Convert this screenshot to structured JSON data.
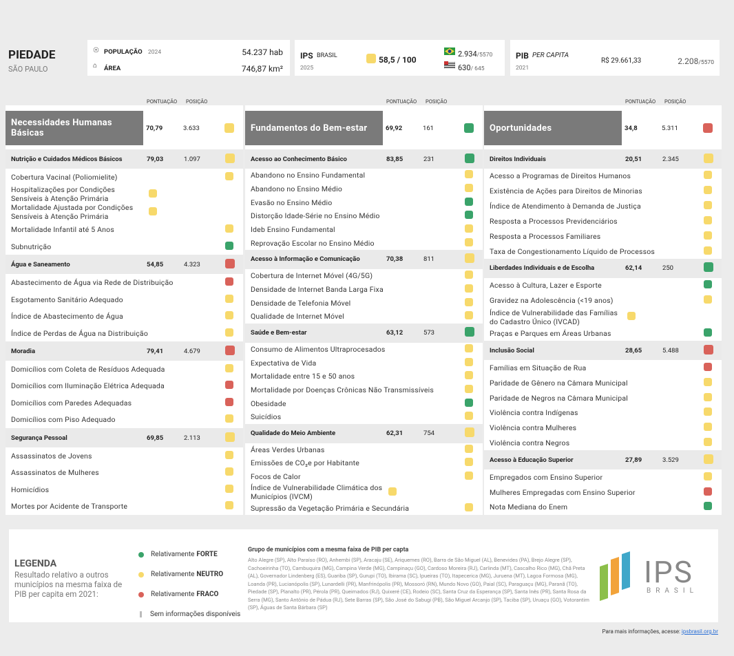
{
  "header": {
    "city": "PIEDADE",
    "state": "SÃO PAULO",
    "population": {
      "label": "POPULAÇÃO",
      "year": "2024",
      "value": "54.237 hab"
    },
    "area": {
      "label": "ÁREA",
      "value": "746,87 km²"
    },
    "ips": {
      "label": "IPS",
      "sub": "BRASIL",
      "year": "2025",
      "score": "58,5 / 100",
      "color": "#f7d96b",
      "rank_br": "2.934",
      "total_br": "/5570",
      "rank_uf": "630",
      "total_uf": "/ 645"
    },
    "pib": {
      "label": "PIB",
      "sub": "PER CAPITA",
      "year": "2021",
      "value": "R$ 29.661,33",
      "rank": "2.208",
      "total": "/5570"
    }
  },
  "labels": {
    "score": "PONTUAÇÃO",
    "position": "POSIÇÃO"
  },
  "columns": [
    {
      "name": "Necessidades Humanas Básicas",
      "score": "70,79",
      "position": "3.633",
      "color": "#f7d96b",
      "components": [
        {
          "name": "Nutrição e Cuidados Médicos Básicos",
          "score": "79,03",
          "position": "1.097",
          "color": "#f7d96b",
          "indicators": [
            {
              "name": "Cobertura Vacinal (Poliomielite)",
              "color": "#f7d96b"
            },
            {
              "name": "Hospitalizações por Condições Sensíveis à Atenção Primária",
              "color": "#f7d96b"
            },
            {
              "name": "Mortalidade Ajustada por Condições Sensíveis à Atenção Primária",
              "color": "#f7d96b"
            },
            {
              "name": "Mortalidade Infantil até 5 Anos",
              "color": "#f7d96b"
            },
            {
              "name": "Subnutrição",
              "color": "#3aa36a"
            }
          ]
        },
        {
          "name": "Água e Saneamento",
          "score": "54,85",
          "position": "4.323",
          "color": "#d9625a",
          "indicators": [
            {
              "name": "Abastecimento de Água via Rede de Distribuição",
              "color": "#d9625a"
            },
            {
              "name": "Esgotamento Sanitário Adequado",
              "color": "#f7d96b"
            },
            {
              "name": "Índice de Abastecimento de Água",
              "color": "#f7d96b"
            },
            {
              "name": "Índice de Perdas de Água na Distribuição",
              "color": "#f7d96b"
            }
          ]
        },
        {
          "name": "Moradia",
          "score": "79,41",
          "position": "4.679",
          "color": "#d9625a",
          "indicators": [
            {
              "name": "Domicílios com Coleta de Resíduos Adequada",
              "color": "#f7d96b"
            },
            {
              "name": "Domicílios com Iluminação Elétrica Adequada",
              "color": "#d9625a"
            },
            {
              "name": "Domicílios com Paredes Adequadas",
              "color": "#d9625a"
            },
            {
              "name": "Domicílios com Piso Adequado",
              "color": "#f7d96b"
            }
          ]
        },
        {
          "name": "Segurança Pessoal",
          "score": "69,85",
          "position": "2.113",
          "color": "#f7d96b",
          "indicators": [
            {
              "name": "Assassinatos de Jovens",
              "color": "#f7d96b"
            },
            {
              "name": "Assassinatos de Mulheres",
              "color": "#f7d96b"
            },
            {
              "name": "Homicídios",
              "color": "#f7d96b"
            },
            {
              "name": "Mortes por Acidente de Transporte",
              "color": "#f7d96b"
            }
          ]
        }
      ]
    },
    {
      "name": "Fundamentos do Bem-estar",
      "score": "69,92",
      "position": "161",
      "color": "#3aa36a",
      "components": [
        {
          "name": "Acesso ao Conhecimento Básico",
          "score": "83,85",
          "position": "231",
          "color": "#3aa36a",
          "indicators": [
            {
              "name": "Abandono no Ensino Fundamental",
              "color": "#f7d96b"
            },
            {
              "name": "Abandono no Ensino Médio",
              "color": "#f7d96b"
            },
            {
              "name": "Evasão no Ensino Médio",
              "color": "#3aa36a"
            },
            {
              "name": "Distorção Idade-Série no Ensino Médio",
              "color": "#3aa36a"
            },
            {
              "name": "Ideb Ensino Fundamental",
              "color": "#f7d96b"
            },
            {
              "name": "Reprovação Escolar no Ensino Médio",
              "color": "#f7d96b"
            }
          ]
        },
        {
          "name": "Acesso à Informação e Comunicação",
          "score": "70,38",
          "position": "811",
          "color": "#f7d96b",
          "indicators": [
            {
              "name": "Cobertura de Internet Móvel (4G/5G)",
              "color": "#f7d96b"
            },
            {
              "name": "Densidade de Internet Banda Larga Fixa",
              "color": "#f7d96b"
            },
            {
              "name": "Densidade de Telefonia Móvel",
              "color": "#f7d96b"
            },
            {
              "name": "Qualidade de Internet Móvel",
              "color": "#f7d96b"
            }
          ]
        },
        {
          "name": "Saúde e Bem-estar",
          "score": "63,12",
          "position": "573",
          "color": "#3aa36a",
          "indicators": [
            {
              "name": "Consumo de Alimentos Ultraprocesados",
              "color": "#f7d96b"
            },
            {
              "name": "Expectativa de Vida",
              "color": "#f7d96b"
            },
            {
              "name": "Mortalidade entre 15 e 50 anos",
              "color": "#f7d96b"
            },
            {
              "name": "Mortalidade por Doenças Crônicas Não Transmissíveis",
              "color": "#f7d96b"
            },
            {
              "name": "Obesidade",
              "color": "#3aa36a"
            },
            {
              "name": "Suicídios",
              "color": "#f7d96b"
            }
          ]
        },
        {
          "name": "Qualidade do Meio Ambiente",
          "score": "62,31",
          "position": "754",
          "color": "#f7d96b",
          "indicators": [
            {
              "name": "Áreas Verdes Urbanas",
              "color": "#f7d96b"
            },
            {
              "name": "Emissões de CO₂e por Habitante",
              "color": "#f7d96b"
            },
            {
              "name": "Focos de Calor",
              "color": "#f7d96b"
            },
            {
              "name": "Índice de Vulnerabilidade Climática dos Municípios (IVCM)",
              "color": "#f7d96b"
            },
            {
              "name": "Supressão da Vegetação Primária e Secundária",
              "color": "#f7d96b"
            }
          ]
        }
      ]
    },
    {
      "name": "Oportunidades",
      "score": "34,8",
      "position": "5.311",
      "color": "#d9625a",
      "components": [
        {
          "name": "Direitos Individuais",
          "score": "20,51",
          "position": "2.345",
          "color": "#f7d96b",
          "indicators": [
            {
              "name": "Acesso a Programas de Direitos Humanos",
              "color": "#f7d96b"
            },
            {
              "name": "Existência de Ações para Direitos de Minorias",
              "color": "#f7d96b"
            },
            {
              "name": "Índice de Atendimento à Demanda de Justiça",
              "color": "#f7d96b"
            },
            {
              "name": "Resposta a Processos Previdenciários",
              "color": "#f7d96b"
            },
            {
              "name": "Resposta a Processos Familiares",
              "color": "#f7d96b"
            },
            {
              "name": "Taxa de Congestionamento Líquido de Processos",
              "color": "#f7d96b"
            }
          ]
        },
        {
          "name": "Liberdades Individuais e de Escolha",
          "score": "62,14",
          "position": "250",
          "color": "#3aa36a",
          "indicators": [
            {
              "name": "Acesso à Cultura, Lazer e Esporte",
              "color": "#3aa36a"
            },
            {
              "name": "Gravidez na Adolescência (<19 anos)",
              "color": "#f7d96b"
            },
            {
              "name": "Índice de Vulnerabilidade das Famílias do Cadastro Único (IVCAD)",
              "color": "#f7d96b"
            },
            {
              "name": "Praças e Parques em Áreas Urbanas",
              "color": "#3aa36a"
            }
          ]
        },
        {
          "name": "Inclusão Social",
          "score": "28,65",
          "position": "5.488",
          "color": "#d9625a",
          "indicators": [
            {
              "name": "Famílias em Situação de Rua",
              "color": "#d9625a"
            },
            {
              "name": "Paridade de Gênero na Câmara Municipal",
              "color": "#f7d96b"
            },
            {
              "name": "Paridade de Negros na Câmara Municipal",
              "color": "#f7d96b"
            },
            {
              "name": "Violência contra Indígenas",
              "color": "#f7d96b"
            },
            {
              "name": "Violência contra Mulheres",
              "color": "#f7d96b"
            },
            {
              "name": "Violência contra Negros",
              "color": "#f7d96b"
            }
          ]
        },
        {
          "name": "Acesso à Educação Superior",
          "score": "27,89",
          "position": "3.529",
          "color": "#f7d96b",
          "indicators": [
            {
              "name": "Empregados com Ensino Superior",
              "color": "#f7d96b"
            },
            {
              "name": "Mulheres Empregadas com Ensino Superior",
              "color": "#d9625a"
            },
            {
              "name": "Nota Mediana do Enem",
              "color": "#3aa36a"
            }
          ]
        }
      ]
    }
  ],
  "legend": {
    "title": "LEGENDA",
    "description": "Resultado relativo a outros municípios na mesma faixa de PIB per capita em 2021:",
    "items": [
      {
        "prefix": "Relativamente",
        "strong": "FORTE",
        "color": "#3aa36a"
      },
      {
        "prefix": "Relativamente",
        "strong": "NEUTRO",
        "color": "#f7d96b"
      },
      {
        "prefix": "Relativamente",
        "strong": "FRACO",
        "color": "#d9625a"
      }
    ],
    "no_data": {
      "text": "Sem informações disponíveis",
      "color": "#bbbbbb"
    },
    "group_title": "Grupo de municípios com a mesma faixa de PIB per capta",
    "group_text": "Alto Alegre (SP), Alto Paraíso (RO), Anhembi (SP), Aracaju (SE), Ariquemes (RO), Barra de São Miguel (AL), Benevides (PA), Brejo Alegre (SP), Cachoeirinha (TO), Cambuquira (MG), Campina Verde (MG), Campinaçu (GO), Cardoso Moreira (RJ), Carlinda (MT), Cascalho Rico (MG), Chã Preta (AL), Governador Lindenberg (ES), Guariba (SP), Gurupi (TO), Ibirama (SC), Ipueiras (TO), Itapecerica (MG), Juruena (MT), Lagoa Formosa (MG), Loanda (PR), Lucianópolis (SP), Lunardelli (PR), Manfrinópolis (PR), Mossoró (RN), Mundo Novo (GO), Paial (SC), Paraguaçu (MG), Paranã (TO), Piedade (SP), Planalto (PR), Pérola (PR), Queimados (RJ), Quixeré (CE), Rodeio (SC), Santa Cruz da Esperança (SP), Santa Inês (PR), Santa Rosa da Serra (MG), Santo Antônio de Pádua (RJ), Sete Barras (SP), São José do Sabugi (PB), São Miguel Arcanjo (SP), Taciba (SP), Uruaçu (GO), Votorantim (SP), Águas de Santa Bárbara (SP)"
  },
  "logo": {
    "name": "IPS",
    "sub": "BRASIL"
  },
  "footer": {
    "text": "Para mais informações, acesse:",
    "link": "ipsbrasil.org.br"
  }
}
